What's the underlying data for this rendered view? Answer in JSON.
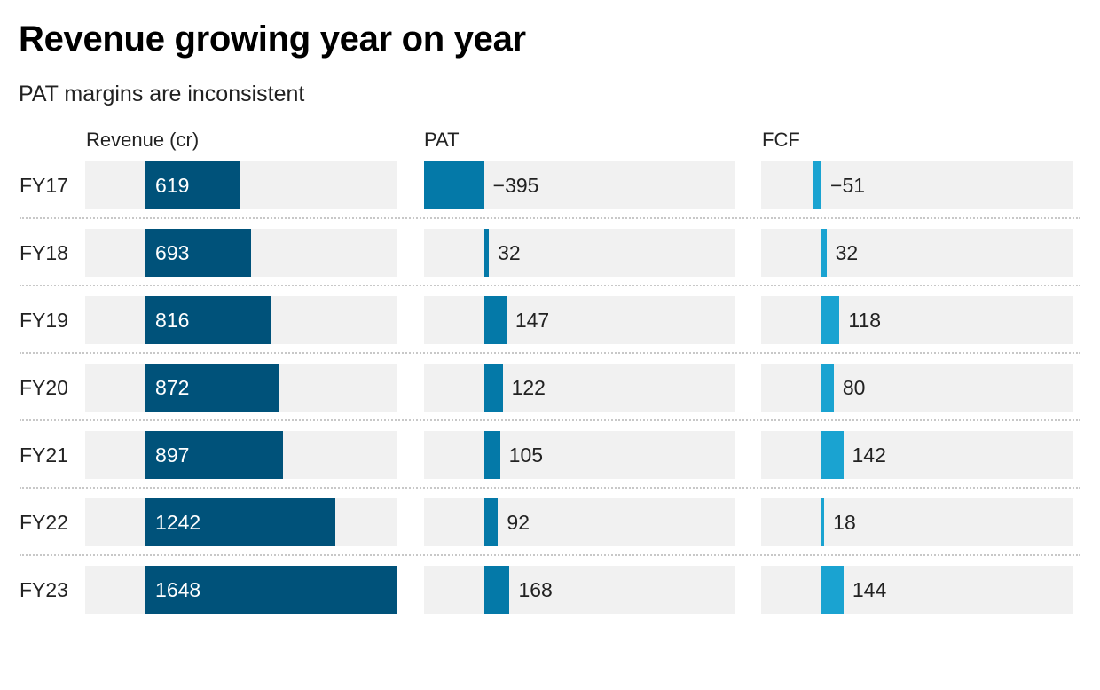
{
  "title": "Revenue growing year on year",
  "subtitle": "PAT margins are inconsistent",
  "colors": {
    "revenue": "#00527a",
    "pat": "#0479a8",
    "fcf": "#1aa3d1",
    "track": "#f1f1f1"
  },
  "chart_data": {
    "type": "bar",
    "orientation": "horizontal",
    "categories": [
      "FY17",
      "FY18",
      "FY19",
      "FY20",
      "FY21",
      "FY22",
      "FY23"
    ],
    "series": [
      {
        "name": "Revenue (cr)",
        "values": [
          619,
          693,
          816,
          872,
          897,
          1242,
          1648
        ],
        "labels": [
          "619",
          "693",
          "816",
          "872",
          "897",
          "1242",
          "1648"
        ],
        "xlim": [
          -395,
          1648
        ],
        "label_position": "inside"
      },
      {
        "name": "PAT",
        "values": [
          -395,
          32,
          147,
          122,
          105,
          92,
          168
        ],
        "labels": [
          "−395",
          "32",
          "147",
          "122",
          "105",
          "92",
          "168"
        ],
        "xlim": [
          -395,
          1648
        ],
        "label_position": "outside"
      },
      {
        "name": "FCF",
        "values": [
          -51,
          32,
          118,
          80,
          142,
          18,
          144
        ],
        "labels": [
          "−51",
          "32",
          "118",
          "80",
          "142",
          "18",
          "144"
        ],
        "xlim": [
          -395,
          1648
        ],
        "label_position": "outside"
      }
    ],
    "grid": false,
    "legend": "none"
  }
}
